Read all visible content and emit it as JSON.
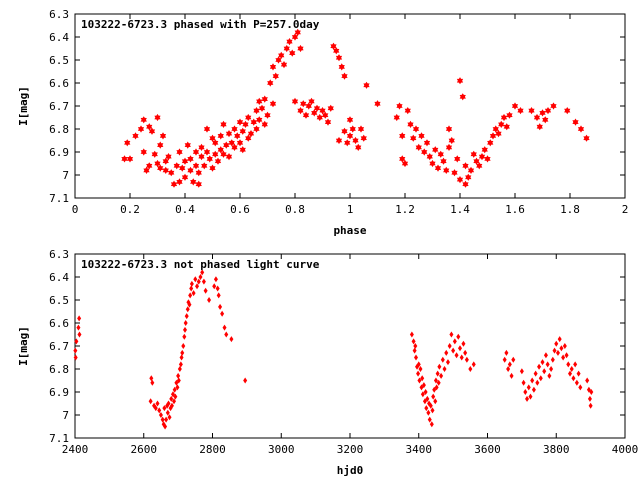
{
  "chart_data": [
    {
      "type": "scatter",
      "title": "103222-6723.3 phased with P=257.0day",
      "xlabel": "phase",
      "ylabel": "I[mag]",
      "xlim": [
        0,
        2
      ],
      "ylim": [
        6.3,
        7.1
      ],
      "y_inverted": true,
      "marker": "star",
      "color": "#ff0000",
      "grid": false,
      "x_ticks": [
        0,
        0.2,
        0.4,
        0.6,
        0.8,
        1,
        1.2,
        1.4,
        1.6,
        1.8,
        2
      ],
      "x_tick_labels": [
        "0",
        "0.2",
        "0.4",
        "0.6",
        "0.8",
        "1",
        "1.2",
        "1.4",
        "1.6",
        "1.8",
        "2"
      ],
      "y_ticks": [
        6.3,
        6.4,
        6.5,
        6.6,
        6.7,
        6.8,
        6.9,
        7,
        7.1
      ],
      "y_tick_labels": [
        "6.3",
        "6.4",
        "6.5",
        "6.6",
        "6.7",
        "6.8",
        "6.9",
        "7",
        "7.1"
      ],
      "points": [
        [
          0.18,
          6.93
        ],
        [
          0.19,
          6.86
        ],
        [
          0.2,
          6.93
        ],
        [
          0.22,
          6.83
        ],
        [
          0.24,
          6.8
        ],
        [
          0.25,
          6.76
        ],
        [
          0.25,
          6.9
        ],
        [
          0.26,
          6.98
        ],
        [
          0.27,
          6.96
        ],
        [
          0.27,
          6.79
        ],
        [
          0.28,
          6.81
        ],
        [
          0.29,
          6.91
        ],
        [
          0.3,
          6.75
        ],
        [
          0.3,
          6.95
        ],
        [
          0.31,
          6.87
        ],
        [
          0.31,
          6.97
        ],
        [
          0.32,
          6.83
        ],
        [
          0.33,
          6.94
        ],
        [
          0.33,
          6.98
        ],
        [
          0.34,
          6.92
        ],
        [
          0.35,
          6.99
        ],
        [
          0.36,
          7.04
        ],
        [
          0.37,
          6.96
        ],
        [
          0.38,
          6.9
        ],
        [
          0.38,
          7.03
        ],
        [
          0.39,
          6.97
        ],
        [
          0.4,
          6.94
        ],
        [
          0.4,
          7.01
        ],
        [
          0.41,
          6.87
        ],
        [
          0.42,
          6.98
        ],
        [
          0.42,
          6.93
        ],
        [
          0.43,
          7.03
        ],
        [
          0.44,
          6.9
        ],
        [
          0.44,
          6.96
        ],
        [
          0.45,
          6.99
        ],
        [
          0.45,
          7.04
        ],
        [
          0.46,
          6.92
        ],
        [
          0.46,
          6.88
        ],
        [
          0.47,
          6.96
        ],
        [
          0.48,
          6.9
        ],
        [
          0.48,
          6.8
        ],
        [
          0.49,
          6.93
        ],
        [
          0.5,
          6.84
        ],
        [
          0.5,
          6.97
        ],
        [
          0.51,
          6.86
        ],
        [
          0.51,
          6.91
        ],
        [
          0.52,
          6.94
        ],
        [
          0.53,
          6.83
        ],
        [
          0.53,
          6.89
        ],
        [
          0.54,
          6.78
        ],
        [
          0.54,
          6.91
        ],
        [
          0.55,
          6.87
        ],
        [
          0.56,
          6.82
        ],
        [
          0.56,
          6.92
        ],
        [
          0.57,
          6.86
        ],
        [
          0.58,
          6.8
        ],
        [
          0.58,
          6.88
        ],
        [
          0.59,
          6.83
        ],
        [
          0.6,
          6.77
        ],
        [
          0.6,
          6.86
        ],
        [
          0.61,
          6.81
        ],
        [
          0.61,
          6.89
        ],
        [
          0.62,
          6.78
        ],
        [
          0.63,
          6.84
        ],
        [
          0.63,
          6.75
        ],
        [
          0.64,
          6.82
        ],
        [
          0.65,
          6.77
        ],
        [
          0.66,
          6.72
        ],
        [
          0.66,
          6.8
        ],
        [
          0.67,
          6.68
        ],
        [
          0.67,
          6.76
        ],
        [
          0.68,
          6.71
        ],
        [
          0.69,
          6.78
        ],
        [
          0.69,
          6.67
        ],
        [
          0.7,
          6.74
        ],
        [
          0.71,
          6.6
        ],
        [
          0.72,
          6.69
        ],
        [
          0.72,
          6.53
        ],
        [
          0.73,
          6.57
        ],
        [
          0.74,
          6.5
        ],
        [
          0.75,
          6.48
        ],
        [
          0.76,
          6.52
        ],
        [
          0.77,
          6.45
        ],
        [
          0.78,
          6.42
        ],
        [
          0.79,
          6.47
        ],
        [
          0.8,
          6.4
        ],
        [
          0.8,
          6.68
        ],
        [
          0.81,
          6.38
        ],
        [
          0.82,
          6.45
        ],
        [
          0.82,
          6.72
        ],
        [
          0.83,
          6.69
        ],
        [
          0.84,
          6.74
        ],
        [
          0.85,
          6.7
        ],
        [
          0.86,
          6.68
        ],
        [
          0.87,
          6.73
        ],
        [
          0.88,
          6.71
        ],
        [
          0.89,
          6.75
        ],
        [
          0.9,
          6.72
        ],
        [
          0.91,
          6.74
        ],
        [
          0.92,
          6.77
        ],
        [
          0.93,
          6.71
        ],
        [
          0.94,
          6.44
        ],
        [
          0.95,
          6.46
        ],
        [
          0.96,
          6.49
        ],
        [
          0.96,
          6.85
        ],
        [
          0.97,
          6.53
        ],
        [
          0.98,
          6.81
        ],
        [
          0.98,
          6.57
        ],
        [
          0.99,
          6.86
        ],
        [
          1.0,
          6.83
        ],
        [
          1.0,
          6.76
        ],
        [
          1.01,
          6.8
        ],
        [
          1.02,
          6.85
        ],
        [
          1.03,
          6.88
        ],
        [
          1.04,
          6.8
        ],
        [
          1.05,
          6.84
        ],
        [
          1.06,
          6.61
        ],
        [
          1.1,
          6.69
        ],
        [
          1.17,
          6.75
        ],
        [
          1.18,
          6.7
        ],
        [
          1.19,
          6.83
        ],
        [
          1.19,
          6.93
        ],
        [
          1.2,
          6.95
        ],
        [
          1.21,
          6.72
        ],
        [
          1.22,
          6.78
        ],
        [
          1.23,
          6.84
        ],
        [
          1.24,
          6.8
        ],
        [
          1.25,
          6.88
        ],
        [
          1.26,
          6.83
        ],
        [
          1.27,
          6.9
        ],
        [
          1.28,
          6.86
        ],
        [
          1.29,
          6.92
        ],
        [
          1.3,
          6.95
        ],
        [
          1.31,
          6.89
        ],
        [
          1.32,
          6.97
        ],
        [
          1.33,
          6.91
        ],
        [
          1.34,
          6.94
        ],
        [
          1.35,
          6.98
        ],
        [
          1.36,
          6.88
        ],
        [
          1.36,
          6.8
        ],
        [
          1.37,
          6.85
        ],
        [
          1.38,
          6.99
        ],
        [
          1.39,
          6.93
        ],
        [
          1.4,
          6.59
        ],
        [
          1.4,
          7.02
        ],
        [
          1.41,
          6.66
        ],
        [
          1.42,
          6.96
        ],
        [
          1.42,
          7.04
        ],
        [
          1.43,
          7.01
        ],
        [
          1.44,
          6.98
        ],
        [
          1.45,
          6.91
        ],
        [
          1.46,
          6.94
        ],
        [
          1.47,
          6.96
        ],
        [
          1.48,
          6.92
        ],
        [
          1.49,
          6.89
        ],
        [
          1.5,
          6.93
        ],
        [
          1.51,
          6.86
        ],
        [
          1.52,
          6.83
        ],
        [
          1.53,
          6.8
        ],
        [
          1.54,
          6.82
        ],
        [
          1.55,
          6.78
        ],
        [
          1.56,
          6.75
        ],
        [
          1.57,
          6.79
        ],
        [
          1.58,
          6.74
        ],
        [
          1.6,
          6.7
        ],
        [
          1.62,
          6.72
        ],
        [
          1.66,
          6.72
        ],
        [
          1.68,
          6.75
        ],
        [
          1.69,
          6.79
        ],
        [
          1.7,
          6.73
        ],
        [
          1.71,
          6.76
        ],
        [
          1.72,
          6.72
        ],
        [
          1.74,
          6.7
        ],
        [
          1.79,
          6.72
        ],
        [
          1.82,
          6.77
        ],
        [
          1.84,
          6.8
        ],
        [
          1.86,
          6.84
        ]
      ]
    },
    {
      "type": "scatter",
      "title": "103222-6723.3 not phased light curve",
      "xlabel": "hjd0",
      "ylabel": "I[mag]",
      "xlim": [
        2400,
        4000
      ],
      "ylim": [
        6.3,
        7.1
      ],
      "y_inverted": true,
      "marker": "diamond",
      "color": "#ff0000",
      "grid": false,
      "x_ticks": [
        2400,
        2600,
        2800,
        3000,
        3200,
        3400,
        3600,
        3800,
        4000
      ],
      "x_tick_labels": [
        "2400",
        "2600",
        "2800",
        "3000",
        "3200",
        "3400",
        "3600",
        "3800",
        "4000"
      ],
      "y_ticks": [
        6.3,
        6.4,
        6.5,
        6.6,
        6.7,
        6.8,
        6.9,
        7,
        7.1
      ],
      "y_tick_labels": [
        "6.3",
        "6.4",
        "6.5",
        "6.6",
        "6.7",
        "6.8",
        "6.9",
        "7",
        "7.1"
      ],
      "points": [
        [
          2401,
          6.72
        ],
        [
          2402,
          6.75
        ],
        [
          2404,
          6.68
        ],
        [
          2410,
          6.62
        ],
        [
          2412,
          6.58
        ],
        [
          2413,
          6.65
        ],
        [
          2620,
          6.94
        ],
        [
          2622,
          6.84
        ],
        [
          2625,
          6.86
        ],
        [
          2630,
          6.96
        ],
        [
          2635,
          6.97
        ],
        [
          2640,
          6.95
        ],
        [
          2645,
          6.98
        ],
        [
          2650,
          7.0
        ],
        [
          2655,
          7.02
        ],
        [
          2658,
          7.04
        ],
        [
          2660,
          6.97
        ],
        [
          2662,
          7.05
        ],
        [
          2665,
          7.02
        ],
        [
          2668,
          6.96
        ],
        [
          2670,
          6.99
        ],
        [
          2672,
          6.95
        ],
        [
          2675,
          7.01
        ],
        [
          2678,
          6.97
        ],
        [
          2680,
          6.93
        ],
        [
          2682,
          6.96
        ],
        [
          2685,
          6.91
        ],
        [
          2688,
          6.94
        ],
        [
          2690,
          6.89
        ],
        [
          2692,
          6.92
        ],
        [
          2695,
          6.86
        ],
        [
          2698,
          6.88
        ],
        [
          2700,
          6.83
        ],
        [
          2702,
          6.85
        ],
        [
          2705,
          6.8
        ],
        [
          2708,
          6.78
        ],
        [
          2710,
          6.75
        ],
        [
          2712,
          6.73
        ],
        [
          2715,
          6.7
        ],
        [
          2718,
          6.66
        ],
        [
          2720,
          6.63
        ],
        [
          2722,
          6.6
        ],
        [
          2725,
          6.57
        ],
        [
          2728,
          6.54
        ],
        [
          2730,
          6.51
        ],
        [
          2733,
          6.52
        ],
        [
          2735,
          6.48
        ],
        [
          2738,
          6.45
        ],
        [
          2740,
          6.43
        ],
        [
          2745,
          6.47
        ],
        [
          2750,
          6.41
        ],
        [
          2755,
          6.44
        ],
        [
          2760,
          6.42
        ],
        [
          2765,
          6.4
        ],
        [
          2770,
          6.38
        ],
        [
          2775,
          6.42
        ],
        [
          2780,
          6.46
        ],
        [
          2790,
          6.5
        ],
        [
          2805,
          6.44
        ],
        [
          2810,
          6.41
        ],
        [
          2815,
          6.45
        ],
        [
          2818,
          6.48
        ],
        [
          2822,
          6.53
        ],
        [
          2828,
          6.56
        ],
        [
          2835,
          6.62
        ],
        [
          2840,
          6.65
        ],
        [
          2855,
          6.67
        ],
        [
          2895,
          6.85
        ],
        [
          3380,
          6.65
        ],
        [
          3385,
          6.68
        ],
        [
          3388,
          6.72
        ],
        [
          3390,
          6.7
        ],
        [
          3392,
          6.75
        ],
        [
          3395,
          6.79
        ],
        [
          3398,
          6.82
        ],
        [
          3400,
          6.78
        ],
        [
          3402,
          6.85
        ],
        [
          3405,
          6.8
        ],
        [
          3408,
          6.88
        ],
        [
          3410,
          6.84
        ],
        [
          3412,
          6.91
        ],
        [
          3415,
          6.87
        ],
        [
          3418,
          6.94
        ],
        [
          3420,
          6.9
        ],
        [
          3422,
          6.97
        ],
        [
          3425,
          6.93
        ],
        [
          3428,
          6.99
        ],
        [
          3430,
          6.95
        ],
        [
          3432,
          7.02
        ],
        [
          3435,
          6.96
        ],
        [
          3438,
          7.04
        ],
        [
          3440,
          6.98
        ],
        [
          3442,
          6.92
        ],
        [
          3445,
          6.89
        ],
        [
          3448,
          6.94
        ],
        [
          3450,
          6.85
        ],
        [
          3452,
          6.88
        ],
        [
          3455,
          6.82
        ],
        [
          3458,
          6.86
        ],
        [
          3460,
          6.79
        ],
        [
          3465,
          6.83
        ],
        [
          3470,
          6.76
        ],
        [
          3475,
          6.8
        ],
        [
          3480,
          6.73
        ],
        [
          3485,
          6.77
        ],
        [
          3490,
          6.7
        ],
        [
          3495,
          6.65
        ],
        [
          3500,
          6.72
        ],
        [
          3505,
          6.68
        ],
        [
          3510,
          6.74
        ],
        [
          3515,
          6.66
        ],
        [
          3520,
          6.71
        ],
        [
          3525,
          6.75
        ],
        [
          3530,
          6.69
        ],
        [
          3535,
          6.73
        ],
        [
          3540,
          6.76
        ],
        [
          3550,
          6.8
        ],
        [
          3560,
          6.78
        ],
        [
          3650,
          6.76
        ],
        [
          3655,
          6.73
        ],
        [
          3660,
          6.8
        ],
        [
          3665,
          6.78
        ],
        [
          3670,
          6.83
        ],
        [
          3675,
          6.76
        ],
        [
          3700,
          6.81
        ],
        [
          3705,
          6.86
        ],
        [
          3710,
          6.9
        ],
        [
          3715,
          6.93
        ],
        [
          3720,
          6.88
        ],
        [
          3725,
          6.92
        ],
        [
          3730,
          6.85
        ],
        [
          3735,
          6.89
        ],
        [
          3740,
          6.82
        ],
        [
          3745,
          6.86
        ],
        [
          3750,
          6.79
        ],
        [
          3755,
          6.84
        ],
        [
          3760,
          6.77
        ],
        [
          3765,
          6.81
        ],
        [
          3770,
          6.74
        ],
        [
          3775,
          6.78
        ],
        [
          3780,
          6.83
        ],
        [
          3785,
          6.8
        ],
        [
          3790,
          6.76
        ],
        [
          3795,
          6.72
        ],
        [
          3800,
          6.69
        ],
        [
          3805,
          6.73
        ],
        [
          3810,
          6.67
        ],
        [
          3815,
          6.71
        ],
        [
          3820,
          6.75
        ],
        [
          3825,
          6.7
        ],
        [
          3830,
          6.74
        ],
        [
          3835,
          6.78
        ],
        [
          3840,
          6.82
        ],
        [
          3845,
          6.8
        ],
        [
          3850,
          6.84
        ],
        [
          3855,
          6.78
        ],
        [
          3860,
          6.86
        ],
        [
          3865,
          6.82
        ],
        [
          3870,
          6.88
        ],
        [
          3890,
          6.85
        ],
        [
          3895,
          6.89
        ],
        [
          3898,
          6.93
        ],
        [
          3900,
          6.96
        ],
        [
          3902,
          6.9
        ]
      ]
    }
  ]
}
